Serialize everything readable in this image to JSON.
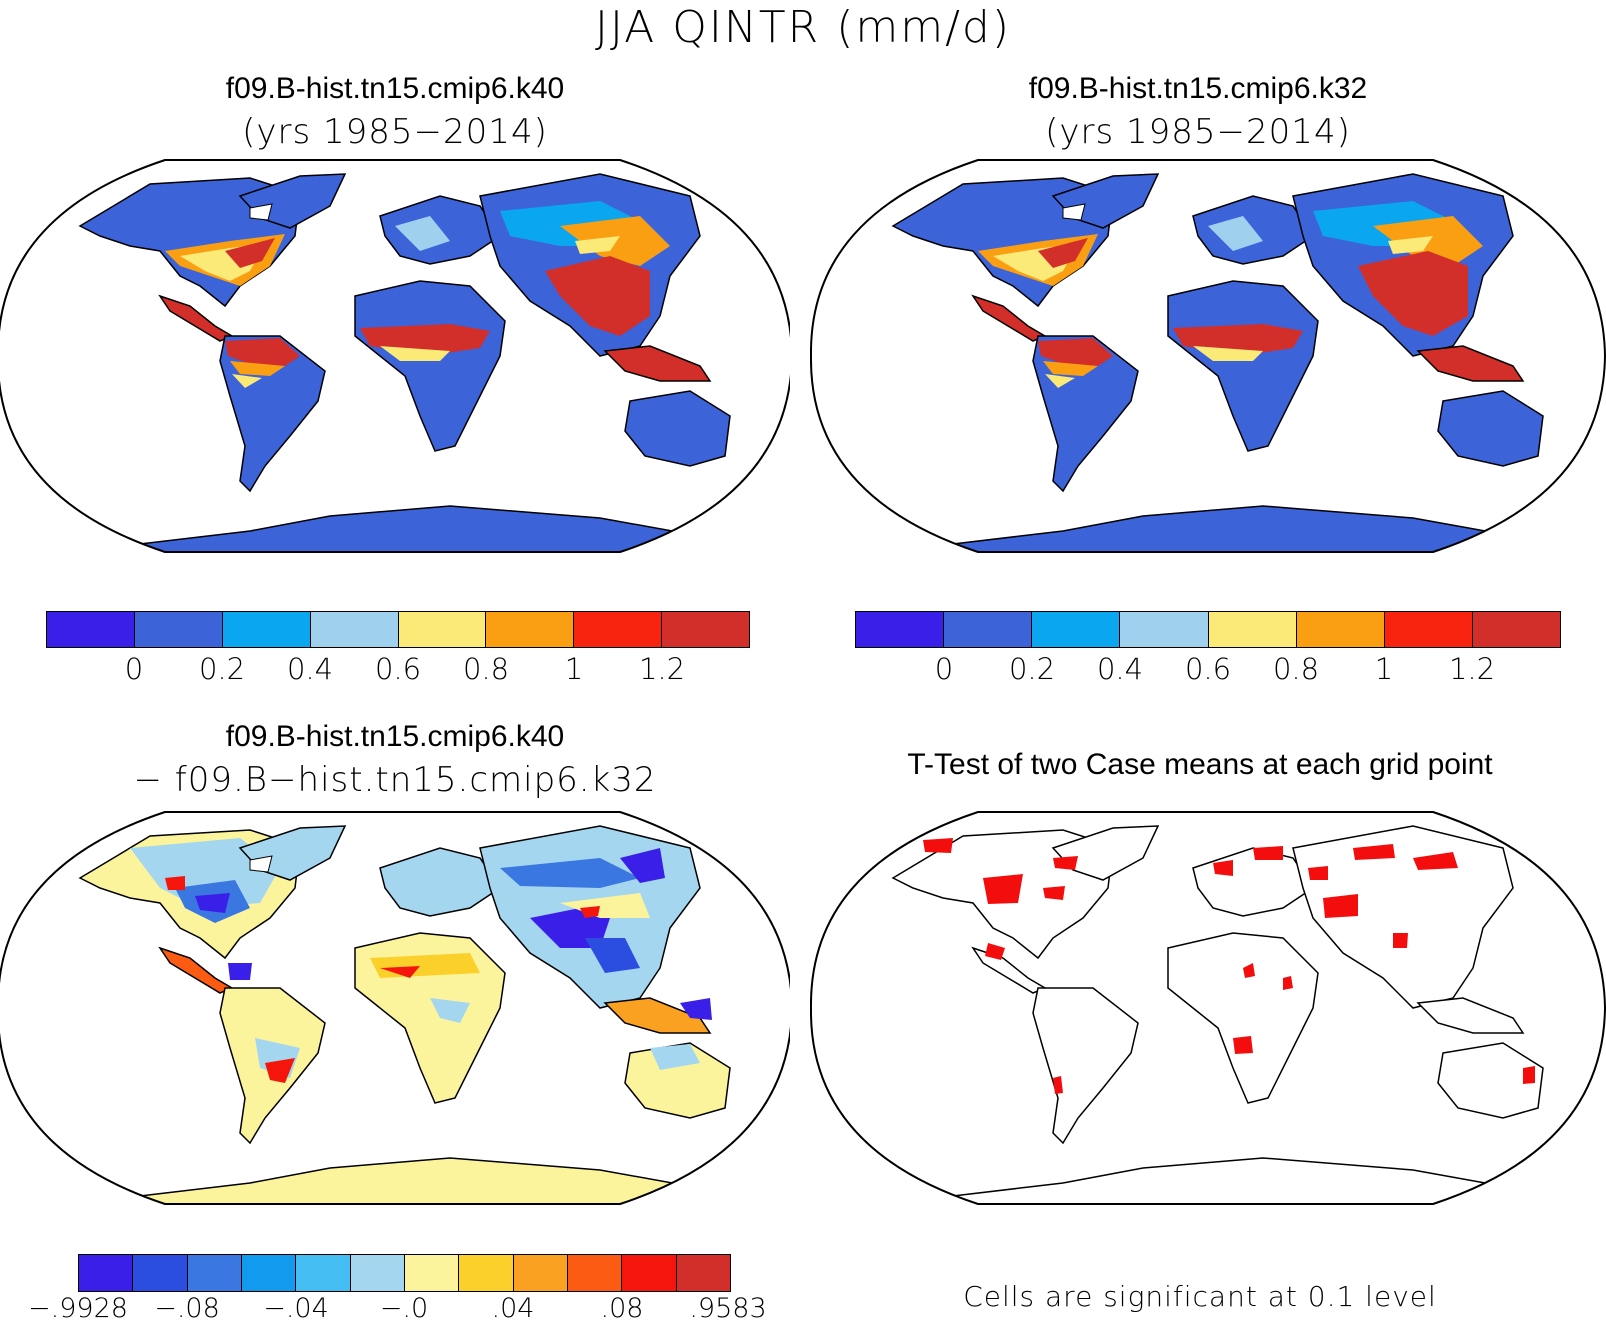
{
  "figure": {
    "title": "JJA QINTR (mm/d)"
  },
  "panels": {
    "top_left": {
      "title": "f09.B-hist.tn15.cmip6.k40",
      "subtitle": "(yrs 1985−2014)"
    },
    "top_right": {
      "title": "f09.B-hist.tn15.cmip6.k32",
      "subtitle": "(yrs 1985−2014)"
    },
    "bottom_left": {
      "title": "f09.B-hist.tn15.cmip6.k40",
      "subtitle": "− f09.B−hist.tn15.cmip6.k32"
    },
    "bottom_right": {
      "title": "T-Test of two Case means at each grid point",
      "footnote": "Cells are significant at 0.1 level"
    }
  },
  "colorbars": {
    "absolute": {
      "colors": [
        "#3a1fe8",
        "#3d63d9",
        "#0aa6ef",
        "#9fd0ee",
        "#fbe978",
        "#fb9f12",
        "#f8230f",
        "#d22f2a"
      ],
      "labels": [
        "0",
        "0.2",
        "0.4",
        "0.6",
        "0.8",
        "1",
        "1.2"
      ]
    },
    "difference": {
      "colors": [
        "#3a1fe8",
        "#2b4de0",
        "#3a77e0",
        "#129bee",
        "#43bdf2",
        "#a5d6f0",
        "#fcf49c",
        "#fbd02a",
        "#fba121",
        "#fb5b12",
        "#f4150c",
        "#d22f2a"
      ],
      "labels": [
        "−.9928",
        "−.08",
        "−.04",
        "−.0",
        ".04",
        ".08",
        ".9583"
      ]
    }
  },
  "maps": {
    "projection": "robinson",
    "fill_colors": {
      "land_base": "#3d63d9",
      "land_mid": "#0aa6ef",
      "land_light": "#9fd0ee",
      "yellow": "#fbe978",
      "orange": "#fb9f12",
      "red": "#f8230f",
      "dark_red": "#d22f2a",
      "diff_base": "#fcf49c",
      "diff_light_blue": "#a5d6f0",
      "diff_blue": "#3a77e0",
      "diff_purple": "#3a1fe8",
      "significant": "#f40d0d"
    }
  }
}
